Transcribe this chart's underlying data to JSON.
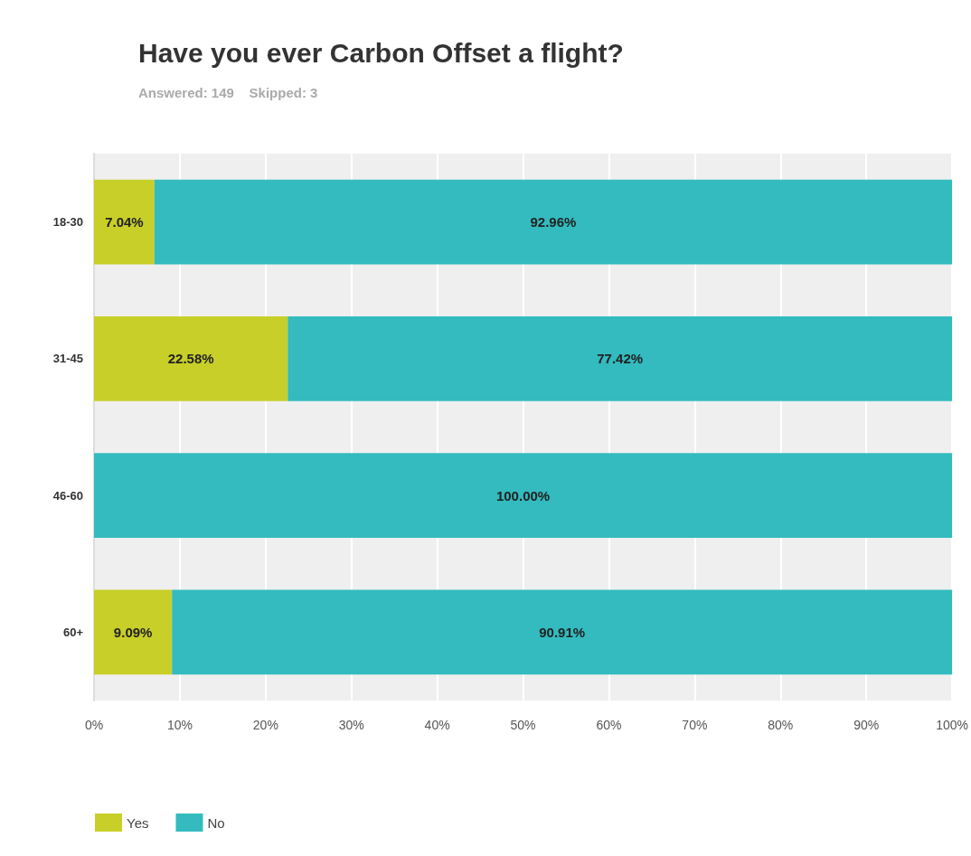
{
  "chart_data": {
    "type": "bar",
    "orientation": "horizontal",
    "stacked": true,
    "title": "Have you ever Carbon Offset a flight?",
    "subtitle": "Answered: 149    Skipped: 3",
    "categories": [
      "18-30",
      "31-45",
      "46-60",
      "60+"
    ],
    "series": [
      {
        "name": "Yes",
        "color": "#c8cf28",
        "values": [
          7.04,
          22.58,
          0,
          9.09
        ],
        "value_labels": [
          "7.04%",
          "22.58%",
          null,
          "9.09%"
        ]
      },
      {
        "name": "No",
        "color": "#33bbbf",
        "values": [
          92.96,
          77.42,
          100,
          90.91
        ],
        "value_labels": [
          "92.96%",
          "77.42%",
          "100.00%",
          "90.91%"
        ]
      }
    ],
    "xlim": [
      0,
      100
    ],
    "xticks": [
      {
        "value": 0,
        "label": "0%"
      },
      {
        "value": 10,
        "label": "10%"
      },
      {
        "value": 20,
        "label": "20%"
      },
      {
        "value": 30,
        "label": "30%"
      },
      {
        "value": 40,
        "label": "40%"
      },
      {
        "value": 50,
        "label": "50%"
      },
      {
        "value": 60,
        "label": "60%"
      },
      {
        "value": 70,
        "label": "70%"
      },
      {
        "value": 80,
        "label": "80%"
      },
      {
        "value": 90,
        "label": "90%"
      },
      {
        "value": 100,
        "label": "100%"
      }
    ],
    "grid": "x",
    "legend": "bottom left"
  }
}
